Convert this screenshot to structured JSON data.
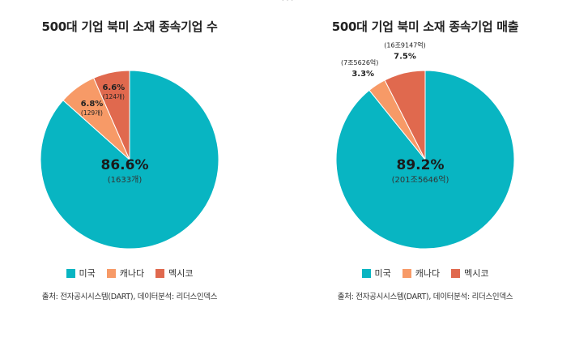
{
  "colors": {
    "us": "#08b5c2",
    "canada": "#f79a67",
    "mexico": "#e0694e"
  },
  "chart_data": [
    {
      "type": "pie",
      "title": "500대 기업 북미 소재 종속기업 수",
      "slices": [
        {
          "name": "미국",
          "value": 86.6,
          "label": "86.6%",
          "sub": "(1633개)"
        },
        {
          "name": "캐나다",
          "value": 6.8,
          "label": "6.8%",
          "sub": "(129개)"
        },
        {
          "name": "멕시코",
          "value": 6.6,
          "label": "6.6%",
          "sub": "(124개)"
        }
      ],
      "legend": [
        "미국",
        "캐나다",
        "멕시코"
      ],
      "source": "출처: 전자공시시스템(DART), 데이터분석: 리더스인덱스"
    },
    {
      "type": "pie",
      "title": "500대 기업 북미 소재 종속기업 매출",
      "slices": [
        {
          "name": "미국",
          "value": 89.2,
          "label": "89.2%",
          "sub": "(201조5646억)"
        },
        {
          "name": "캐나다",
          "value": 3.3,
          "label": "3.3%",
          "sub": "(7조5626억)"
        },
        {
          "name": "멕시코",
          "value": 7.5,
          "label": "7.5%",
          "sub": "(16조9147억)"
        }
      ],
      "legend": [
        "미국",
        "캐나다",
        "멕시코"
      ],
      "source": "출처: 전자공시시스템(DART), 데이터분석: 리더스인덱스"
    }
  ]
}
